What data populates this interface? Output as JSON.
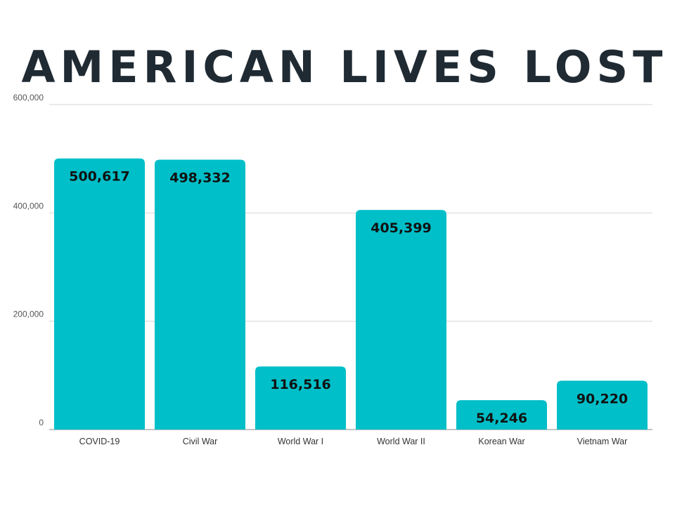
{
  "chart_data": {
    "type": "bar",
    "title": "AMERICAN LIVES LOST",
    "categories": [
      "COVID-19",
      "Civil War",
      "World War I",
      "World War II",
      "Korean War",
      "Vietnam War"
    ],
    "values": [
      500617,
      498332,
      116516,
      405399,
      54246,
      90220
    ],
    "data_labels": [
      "500,617",
      "498,332",
      "116,516",
      "405,399",
      "54,246",
      "90,220"
    ],
    "yticks": [
      0,
      200000,
      400000,
      600000
    ],
    "ytick_labels": [
      "0",
      "200,000",
      "400,000",
      "600,000"
    ],
    "ylim": [
      0,
      600000
    ],
    "grid": true,
    "legend": "none",
    "bar_color": "#00bfc8"
  }
}
